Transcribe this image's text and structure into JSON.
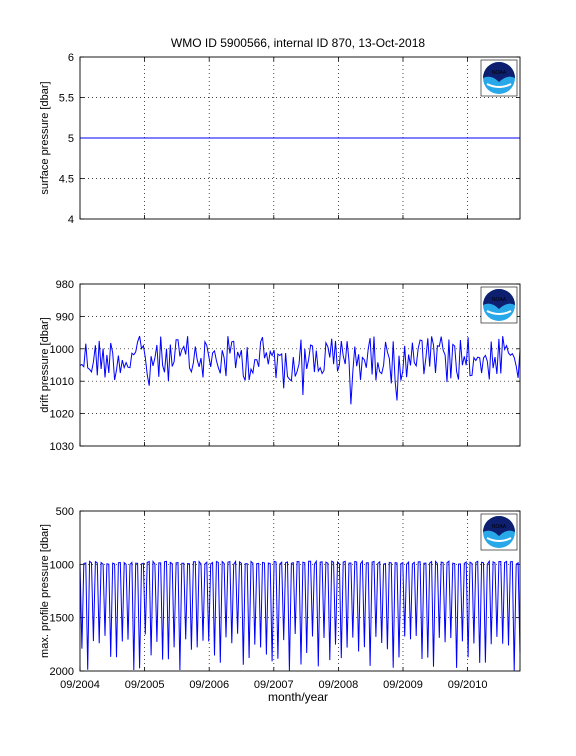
{
  "figure": {
    "title": "WMO ID 5900566, internal ID 870, 13-Oct-2018",
    "xlabel": "month/year",
    "x_tick_labels": [
      "09/2004",
      "09/2005",
      "09/2006",
      "09/2007",
      "09/2008",
      "09/2009",
      "09/2010"
    ],
    "logo_text": "NOAA",
    "colors": {
      "line": "#0000ff",
      "axes": "#000000",
      "grid": "#000000",
      "logo_blue": "#0d1f6e",
      "logo_light": "#28a8e8"
    }
  },
  "chart_data": [
    {
      "type": "line",
      "ylabel": "surface pressure [dbar]",
      "ylim": [
        4,
        6
      ],
      "y_reversed": false,
      "yticks": [
        "4",
        "4.5",
        "5",
        "5.5",
        "6"
      ],
      "grid": "x-and-y dotted",
      "x_range": [
        "2004-09",
        "2011-04"
      ],
      "series": [
        {
          "values_constant": 5
        }
      ]
    },
    {
      "type": "line",
      "ylabel": "drift pressure [dbar]",
      "ylim": [
        980,
        1030
      ],
      "y_reversed": true,
      "yticks": [
        "980",
        "990",
        "1000",
        "1010",
        "1020",
        "1030"
      ],
      "grid": "x-and-y dotted",
      "x_range": [
        "2004-09",
        "2011-04"
      ],
      "series": [
        {
          "mean": 1003,
          "min": 989,
          "max": 1021
        }
      ]
    },
    {
      "type": "line",
      "ylabel": "max. profile pressure [dbar]",
      "ylim": [
        500,
        2000
      ],
      "y_reversed": true,
      "yticks": [
        "500",
        "1000",
        "1500",
        "2000"
      ],
      "grid": "x-and-y dotted",
      "x_range": [
        "2004-09",
        "2011-04"
      ],
      "series": [
        {
          "typical": 1000,
          "deep": 2000
        }
      ]
    }
  ]
}
